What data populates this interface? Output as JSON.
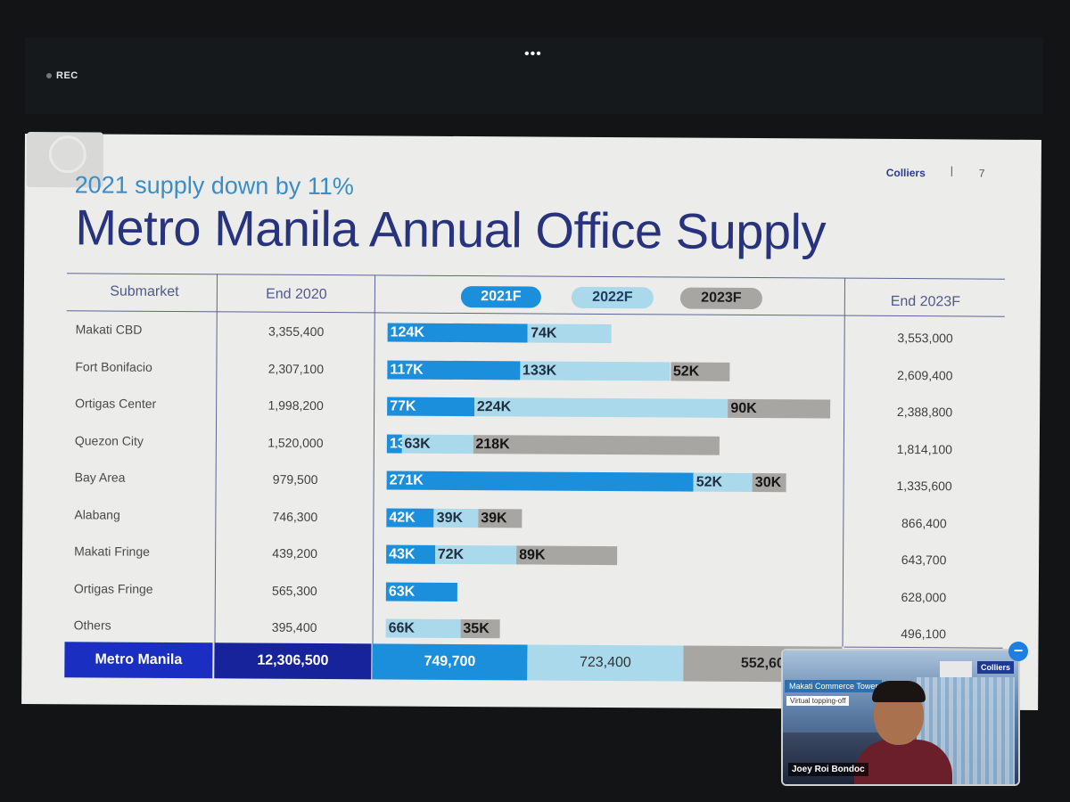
{
  "meeting": {
    "rec_label": "REC",
    "menu_label": "•••"
  },
  "slide": {
    "brand": "Colliers",
    "separator": "|",
    "page_number": "7",
    "subtitle": "2021 supply down by 11%",
    "title": "Metro Manila Annual Office Supply",
    "headers": {
      "submarket": "Submarket",
      "end2020": "End 2020",
      "y2021": "2021F",
      "y2022": "2022F",
      "y2023": "2023F",
      "end2023": "End 2023F"
    },
    "colors": {
      "y2021": "#1b8fdc",
      "y2022": "#a9d9ea",
      "y2023": "#a7a6a2",
      "total_label_bg": "#1a2fc2",
      "total_end2020_bg": "#16239a"
    },
    "rows": [
      {
        "name": "Makati CBD",
        "end2020": "3,355,400",
        "end2023": "3,553,000",
        "s2021": 124,
        "s2022": 74,
        "s2023": 0,
        "l2021": "124K",
        "l2022": "74K",
        "l2023": ""
      },
      {
        "name": "Fort Bonifacio",
        "end2020": "2,307,100",
        "end2023": "2,609,400",
        "s2021": 117,
        "s2022": 133,
        "s2023": 52,
        "l2021": "117K",
        "l2022": "133K",
        "l2023": "52K"
      },
      {
        "name": "Ortigas Center",
        "end2020": "1,998,200",
        "end2023": "2,388,800",
        "s2021": 77,
        "s2022": 224,
        "s2023": 90,
        "l2021": "77K",
        "l2022": "224K",
        "l2023": "90K"
      },
      {
        "name": "Quezon City",
        "end2020": "1,520,000",
        "end2023": "1,814,100",
        "s2021": 13,
        "s2022": 63,
        "s2023": 218,
        "l2021": "13K",
        "l2022": "63K",
        "l2023": "218K"
      },
      {
        "name": "Bay Area",
        "end2020": "979,500",
        "end2023": "1,335,600",
        "s2021": 271,
        "s2022": 52,
        "s2023": 30,
        "l2021": "271K",
        "l2022": "52K",
        "l2023": "30K"
      },
      {
        "name": "Alabang",
        "end2020": "746,300",
        "end2023": "866,400",
        "s2021": 42,
        "s2022": 39,
        "s2023": 39,
        "l2021": "42K",
        "l2022": "39K",
        "l2023": "39K"
      },
      {
        "name": "Makati Fringe",
        "end2020": "439,200",
        "end2023": "643,700",
        "s2021": 43,
        "s2022": 72,
        "s2023": 89,
        "l2021": "43K",
        "l2022": "72K",
        "l2023": "89K"
      },
      {
        "name": "Ortigas Fringe",
        "end2020": "565,300",
        "end2023": "628,000",
        "s2021": 63,
        "s2022": 0,
        "s2023": 0,
        "l2021": "63K",
        "l2022": "",
        "l2023": ""
      },
      {
        "name": "Others",
        "end2020": "395,400",
        "end2023": "496,100",
        "s2021": 0,
        "s2022": 66,
        "s2023": 35,
        "l2021": "",
        "l2022": "66K",
        "l2023": "35K"
      }
    ],
    "totals": {
      "label": "Metro Manila",
      "end2020": "12,306,500",
      "y2021": "749,700",
      "y2022": "723,400",
      "y2023": "552,60"
    }
  },
  "chart_data": {
    "type": "bar",
    "stacked": true,
    "orientation": "horizontal",
    "title": "Metro Manila Annual Office Supply",
    "subtitle": "2021 supply down by 11%",
    "categories": [
      "Makati CBD",
      "Fort Bonifacio",
      "Ortigas Center",
      "Quezon City",
      "Bay Area",
      "Alabang",
      "Makati Fringe",
      "Ortigas Fringe",
      "Others"
    ],
    "series": [
      {
        "name": "2021F",
        "values": [
          124,
          117,
          77,
          13,
          271,
          42,
          43,
          63,
          0
        ]
      },
      {
        "name": "2022F",
        "values": [
          74,
          133,
          224,
          63,
          52,
          39,
          72,
          0,
          66
        ]
      },
      {
        "name": "2023F",
        "values": [
          0,
          52,
          90,
          218,
          30,
          39,
          89,
          0,
          35
        ]
      }
    ],
    "legend": "top"
  },
  "video": {
    "banner": "Makati Commerce Tower",
    "sub": "Virtual topping-off",
    "logo": "Colliers",
    "participant": "Joey Roi Bondoc",
    "minimize": "−"
  }
}
